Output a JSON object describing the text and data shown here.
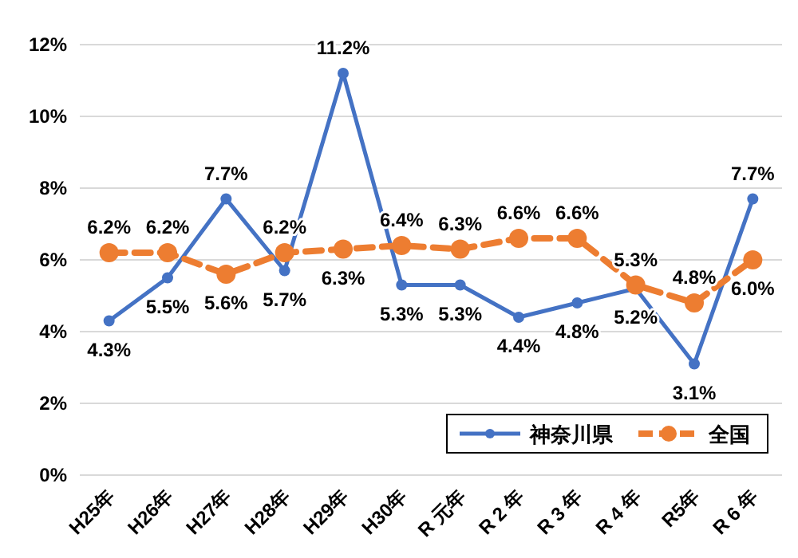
{
  "chart_data": {
    "type": "line",
    "categories": [
      "H25年",
      "H26年",
      "H27年",
      "H28年",
      "H29年",
      "H30年",
      "R 元年",
      "R 2 年",
      "R 3 年",
      "R 4 年",
      "R5年",
      "R 6 年"
    ],
    "series": [
      {
        "name": "神奈川県",
        "color": "#4472c4",
        "line_style": "solid",
        "values": [
          4.3,
          5.5,
          7.7,
          5.7,
          11.2,
          5.3,
          5.3,
          4.4,
          4.8,
          5.2,
          3.1,
          7.7
        ],
        "value_labels": [
          "4.3%",
          "5.5%",
          "7.7%",
          "5.7%",
          "11.2%",
          "5.3%",
          "5.3%",
          "4.4%",
          "4.8%",
          "5.2%",
          "3.1%",
          "7.7%"
        ]
      },
      {
        "name": "全国",
        "color": "#ed7d31",
        "line_style": "dashed",
        "values": [
          6.2,
          6.2,
          5.6,
          6.2,
          6.3,
          6.4,
          6.3,
          6.6,
          6.6,
          5.3,
          4.8,
          6.0
        ],
        "value_labels": [
          "6.2%",
          "6.2%",
          "5.6%",
          "6.2%",
          "6.3%",
          "6.4%",
          "6.3%",
          "6.6%",
          "6.6%",
          "5.3%",
          "4.8%",
          "6.0%"
        ]
      }
    ],
    "ylim": [
      0,
      12
    ],
    "yticks": [
      {
        "value": 0,
        "label": "0%"
      },
      {
        "value": 2,
        "label": "2%"
      },
      {
        "value": 4,
        "label": "4%"
      },
      {
        "value": 6,
        "label": "6%"
      },
      {
        "value": 8,
        "label": "8%"
      },
      {
        "value": 10,
        "label": "10%"
      },
      {
        "value": 12,
        "label": "12%"
      }
    ],
    "grid": "y",
    "legend": "bottom right",
    "marker": "circle"
  }
}
